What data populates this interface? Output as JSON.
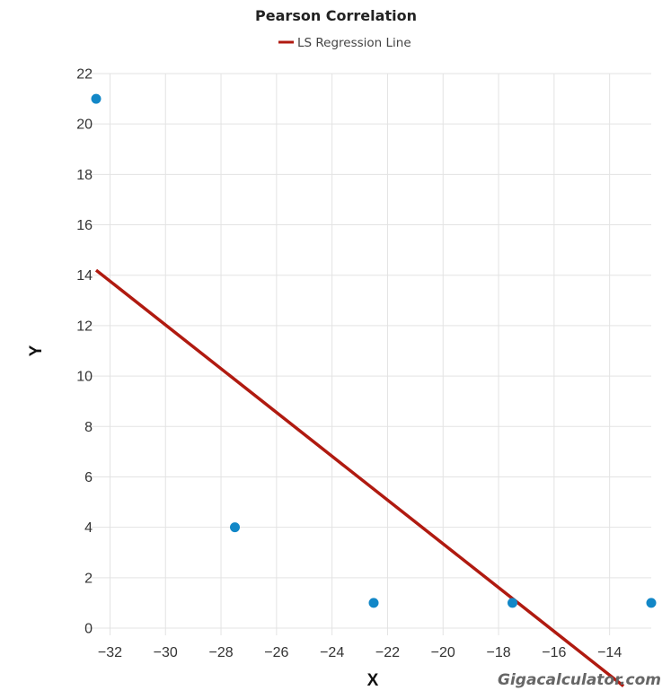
{
  "chart_data": {
    "type": "scatter",
    "title": "Pearson Correlation",
    "xlabel": "X",
    "ylabel": "Y",
    "xlim": [
      -32.5,
      -12.5
    ],
    "ylim": [
      0,
      22
    ],
    "x_ticks": [
      -32,
      -30,
      -28,
      -26,
      -24,
      -22,
      -20,
      -18,
      -16,
      -14
    ],
    "y_ticks": [
      0,
      2,
      4,
      6,
      8,
      10,
      12,
      14,
      16,
      18,
      20,
      22
    ],
    "grid": true,
    "legend_position": "top-center",
    "series": [
      {
        "kind": "scatter",
        "points": [
          {
            "x": -32.5,
            "y": 21
          },
          {
            "x": -27.5,
            "y": 4
          },
          {
            "x": -22.5,
            "y": 1
          },
          {
            "x": -17.5,
            "y": 1
          },
          {
            "x": -12.5,
            "y": 1
          }
        ],
        "color": "#1287c7"
      },
      {
        "kind": "line",
        "name": "LS Regression Line",
        "points": [
          {
            "x": -32.5,
            "y": 14.2
          },
          {
            "x": -13.5,
            "y": -2.3
          }
        ],
        "color": "#b01a10"
      }
    ],
    "watermark": "Gigacalculator.com"
  }
}
